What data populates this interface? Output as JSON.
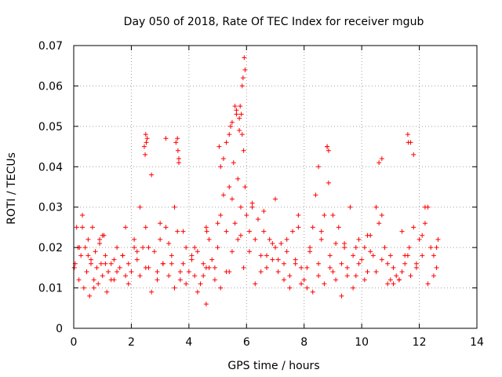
{
  "chart_data": {
    "type": "scatter",
    "title": "Day 050 of 2018, Rate Of TEC Index for receiver mgub",
    "xlabel": "GPS time / hours",
    "ylabel": "ROTI / TECUs",
    "xlim": [
      0,
      14
    ],
    "ylim": [
      0,
      0.07
    ],
    "xticks": [
      "0",
      "2",
      "4",
      "6",
      "8",
      "10",
      "12",
      "14"
    ],
    "yticks": [
      "0",
      "0.01",
      "0.02",
      "0.03",
      "0.04",
      "0.05",
      "0.06",
      "0.07"
    ],
    "grid": true,
    "marker": "+",
    "series_color": "#ff0000",
    "series": [
      {
        "name": "ROTI",
        "x": [
          0.02,
          0.1,
          0.18,
          0.25,
          0.3,
          0.35,
          0.4,
          0.45,
          0.5,
          0.55,
          0.6,
          0.65,
          0.7,
          0.75,
          0.8,
          0.85,
          0.9,
          0.95,
          1.0,
          1.05,
          1.1,
          1.15,
          1.2,
          1.3,
          1.4,
          1.5,
          1.6,
          1.7,
          1.8,
          1.9,
          2.0,
          2.1,
          2.2,
          2.3,
          2.4,
          2.45,
          2.5,
          2.55,
          2.6,
          2.7,
          2.8,
          2.9,
          3.0,
          3.1,
          3.2,
          3.3,
          3.4,
          3.5,
          3.55,
          3.6,
          3.65,
          3.7,
          3.8,
          3.9,
          4.0,
          4.1,
          4.2,
          4.3,
          4.4,
          4.5,
          4.6,
          4.7,
          4.8,
          4.9,
          5.0,
          5.05,
          5.1,
          5.2,
          5.3,
          5.4,
          5.45,
          5.5,
          5.55,
          5.6,
          5.65,
          5.7,
          5.75,
          5.8,
          5.85,
          5.9,
          5.95,
          6.0,
          6.1,
          6.2,
          6.3,
          6.4,
          6.5,
          6.6,
          6.7,
          6.8,
          6.9,
          7.0,
          7.1,
          7.2,
          7.3,
          7.4,
          7.5,
          7.6,
          7.7,
          7.8,
          7.9,
          8.0,
          8.1,
          8.2,
          8.3,
          8.4,
          8.5,
          8.6,
          8.7,
          8.8,
          8.85,
          8.9,
          9.0,
          9.1,
          9.2,
          9.3,
          9.4,
          9.5,
          9.6,
          9.7,
          9.8,
          9.9,
          10.0,
          10.1,
          10.2,
          10.3,
          10.4,
          10.5,
          10.6,
          10.7,
          10.8,
          10.9,
          11.0,
          11.1,
          11.2,
          11.3,
          11.4,
          11.5,
          11.6,
          11.65,
          11.7,
          11.8,
          11.9,
          12.0,
          12.1,
          12.2,
          12.3,
          12.4,
          12.5,
          12.6,
          12.65,
          0.05,
          0.15,
          0.3,
          0.5,
          0.7,
          0.9,
          1.1,
          1.3,
          1.5,
          1.7,
          1.9,
          2.1,
          2.3,
          2.5,
          2.7,
          2.9,
          3.1,
          3.3,
          3.5,
          3.7,
          3.9,
          4.1,
          4.3,
          4.5,
          4.7,
          4.9,
          5.1,
          5.3,
          5.5,
          5.7,
          5.9,
          6.1,
          6.3,
          6.5,
          6.7,
          6.9,
          7.1,
          7.3,
          7.5,
          7.7,
          7.9,
          8.1,
          8.3,
          8.5,
          8.7,
          8.9,
          9.1,
          9.3,
          9.5,
          9.7,
          9.9,
          10.1,
          10.3,
          10.5,
          10.7,
          10.9,
          11.1,
          11.3,
          11.5,
          11.7,
          11.9,
          12.1,
          12.3,
          12.5,
          0.2,
          0.6,
          1.0,
          1.4,
          1.8,
          2.2,
          2.6,
          3.0,
          3.4,
          3.8,
          4.2,
          4.6,
          5.0,
          5.4,
          5.8,
          6.2,
          6.6,
          7.0,
          7.4,
          7.8,
          8.2,
          8.6,
          9.0,
          9.4,
          9.8,
          10.2,
          10.6,
          11.0,
          11.4,
          11.8,
          12.2,
          12.6,
          5.92,
          5.88,
          5.85,
          5.95,
          5.78,
          5.82,
          5.6,
          5.5,
          5.3,
          5.2,
          5.1,
          5.4,
          5.65,
          5.75,
          2.5,
          2.52,
          2.48,
          3.6,
          3.62,
          3.65,
          3.2,
          8.8,
          8.85,
          11.6,
          11.62,
          10.7,
          8.5,
          4.6,
          4.62
        ],
        "y": [
          0.015,
          0.025,
          0.012,
          0.018,
          0.028,
          0.01,
          0.02,
          0.014,
          0.022,
          0.008,
          0.017,
          0.025,
          0.012,
          0.019,
          0.015,
          0.011,
          0.021,
          0.016,
          0.013,
          0.023,
          0.018,
          0.009,
          0.014,
          0.016,
          0.012,
          0.02,
          0.015,
          0.018,
          0.013,
          0.016,
          0.014,
          0.022,
          0.017,
          0.03,
          0.02,
          0.045,
          0.025,
          0.047,
          0.015,
          0.038,
          0.019,
          0.014,
          0.022,
          0.016,
          0.025,
          0.013,
          0.018,
          0.03,
          0.046,
          0.024,
          0.041,
          0.012,
          0.016,
          0.02,
          0.014,
          0.018,
          0.013,
          0.019,
          0.011,
          0.016,
          0.006,
          0.022,
          0.017,
          0.015,
          0.02,
          0.045,
          0.028,
          0.033,
          0.024,
          0.035,
          0.05,
          0.032,
          0.041,
          0.026,
          0.053,
          0.037,
          0.052,
          0.03,
          0.048,
          0.044,
          0.035,
          0.028,
          0.024,
          0.031,
          0.022,
          0.027,
          0.018,
          0.024,
          0.015,
          0.022,
          0.017,
          0.02,
          0.014,
          0.021,
          0.016,
          0.019,
          0.013,
          0.024,
          0.017,
          0.028,
          0.015,
          0.012,
          0.01,
          0.02,
          0.025,
          0.033,
          0.016,
          0.022,
          0.028,
          0.045,
          0.036,
          0.018,
          0.014,
          0.021,
          0.025,
          0.016,
          0.02,
          0.015,
          0.03,
          0.018,
          0.013,
          0.022,
          0.017,
          0.02,
          0.014,
          0.023,
          0.018,
          0.03,
          0.041,
          0.028,
          0.02,
          0.016,
          0.012,
          0.011,
          0.013,
          0.012,
          0.014,
          0.016,
          0.018,
          0.02,
          0.046,
          0.043,
          0.015,
          0.022,
          0.018,
          0.026,
          0.03,
          0.02,
          0.018,
          0.015,
          0.022,
          0.016,
          0.02,
          0.025,
          0.018,
          0.01,
          0.022,
          0.016,
          0.012,
          0.014,
          0.018,
          0.011,
          0.02,
          0.013,
          0.015,
          0.009,
          0.012,
          0.016,
          0.021,
          0.01,
          0.014,
          0.011,
          0.017,
          0.009,
          0.013,
          0.015,
          0.012,
          0.01,
          0.014,
          0.019,
          0.022,
          0.015,
          0.019,
          0.011,
          0.014,
          0.018,
          0.021,
          0.017,
          0.012,
          0.01,
          0.016,
          0.011,
          0.015,
          0.009,
          0.013,
          0.011,
          0.015,
          0.012,
          0.008,
          0.013,
          0.01,
          0.016,
          0.012,
          0.019,
          0.014,
          0.017,
          0.011,
          0.015,
          0.012,
          0.018,
          0.013,
          0.016,
          0.023,
          0.011,
          0.013,
          0.02,
          0.016,
          0.023,
          0.017,
          0.025,
          0.019,
          0.02,
          0.026,
          0.016,
          0.024,
          0.02,
          0.015,
          0.026,
          0.014,
          0.023,
          0.03,
          0.029,
          0.032,
          0.022,
          0.025,
          0.019,
          0.024,
          0.028,
          0.021,
          0.02,
          0.023,
          0.026,
          0.018,
          0.024,
          0.025,
          0.03,
          0.02,
          0.067,
          0.062,
          0.06,
          0.064,
          0.055,
          0.053,
          0.055,
          0.051,
          0.046,
          0.042,
          0.04,
          0.048,
          0.054,
          0.049,
          0.048,
          0.046,
          0.043,
          0.047,
          0.044,
          0.042,
          0.047,
          0.045,
          0.044,
          0.048,
          0.046,
          0.042,
          0.04,
          0.025,
          0.024
        ]
      }
    ]
  }
}
